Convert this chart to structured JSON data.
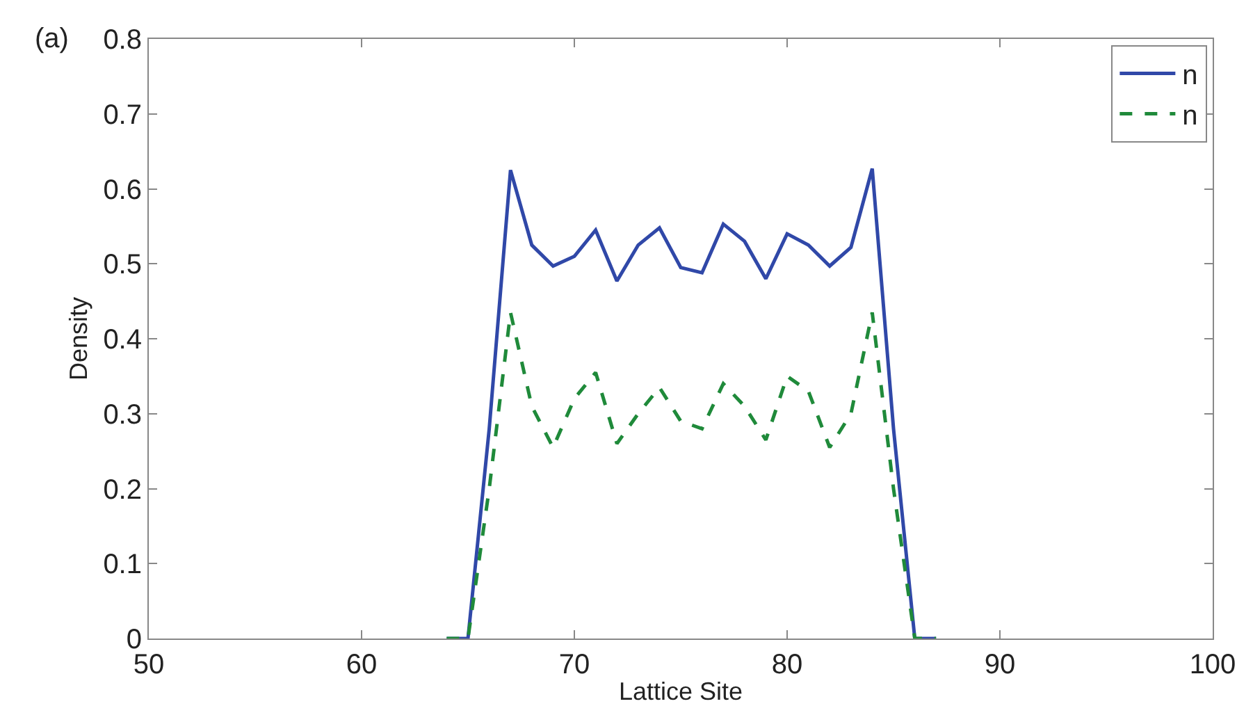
{
  "chart_data": {
    "type": "line",
    "xlabel": "Lattice Site",
    "ylabel": "Density",
    "annotations": [
      "(a)"
    ],
    "xlim": [
      50,
      100
    ],
    "xticks": [
      50,
      60,
      70,
      80,
      90,
      100
    ],
    "ylim": [
      0,
      0.8
    ],
    "yticks": [
      0,
      0.1,
      0.2,
      0.3,
      0.4,
      0.5,
      0.6,
      0.7,
      0.8
    ],
    "grid": false,
    "legend": "top right",
    "x": [
      64,
      65,
      66,
      67,
      68,
      69,
      70,
      71,
      72,
      73,
      74,
      75,
      76,
      77,
      78,
      79,
      80,
      81,
      82,
      83,
      84,
      85,
      86,
      87
    ],
    "series": [
      {
        "name": "n",
        "color": "#3048a8",
        "line_style": "solid",
        "values": [
          0,
          0,
          0.28,
          0.625,
          0.525,
          0.497,
          0.51,
          0.545,
          0.477,
          0.525,
          0.548,
          0.495,
          0.488,
          0.553,
          0.53,
          0.48,
          0.54,
          0.525,
          0.497,
          0.522,
          0.627,
          0.28,
          0,
          0
        ]
      },
      {
        "name": "n",
        "color": "#1f8a3a",
        "line_style": "dashed",
        "values": [
          0,
          0,
          0.2,
          0.435,
          0.31,
          0.255,
          0.32,
          0.355,
          0.26,
          0.3,
          0.335,
          0.29,
          0.28,
          0.34,
          0.31,
          0.265,
          0.35,
          0.33,
          0.255,
          0.3,
          0.435,
          0.2,
          0,
          0
        ]
      }
    ]
  }
}
